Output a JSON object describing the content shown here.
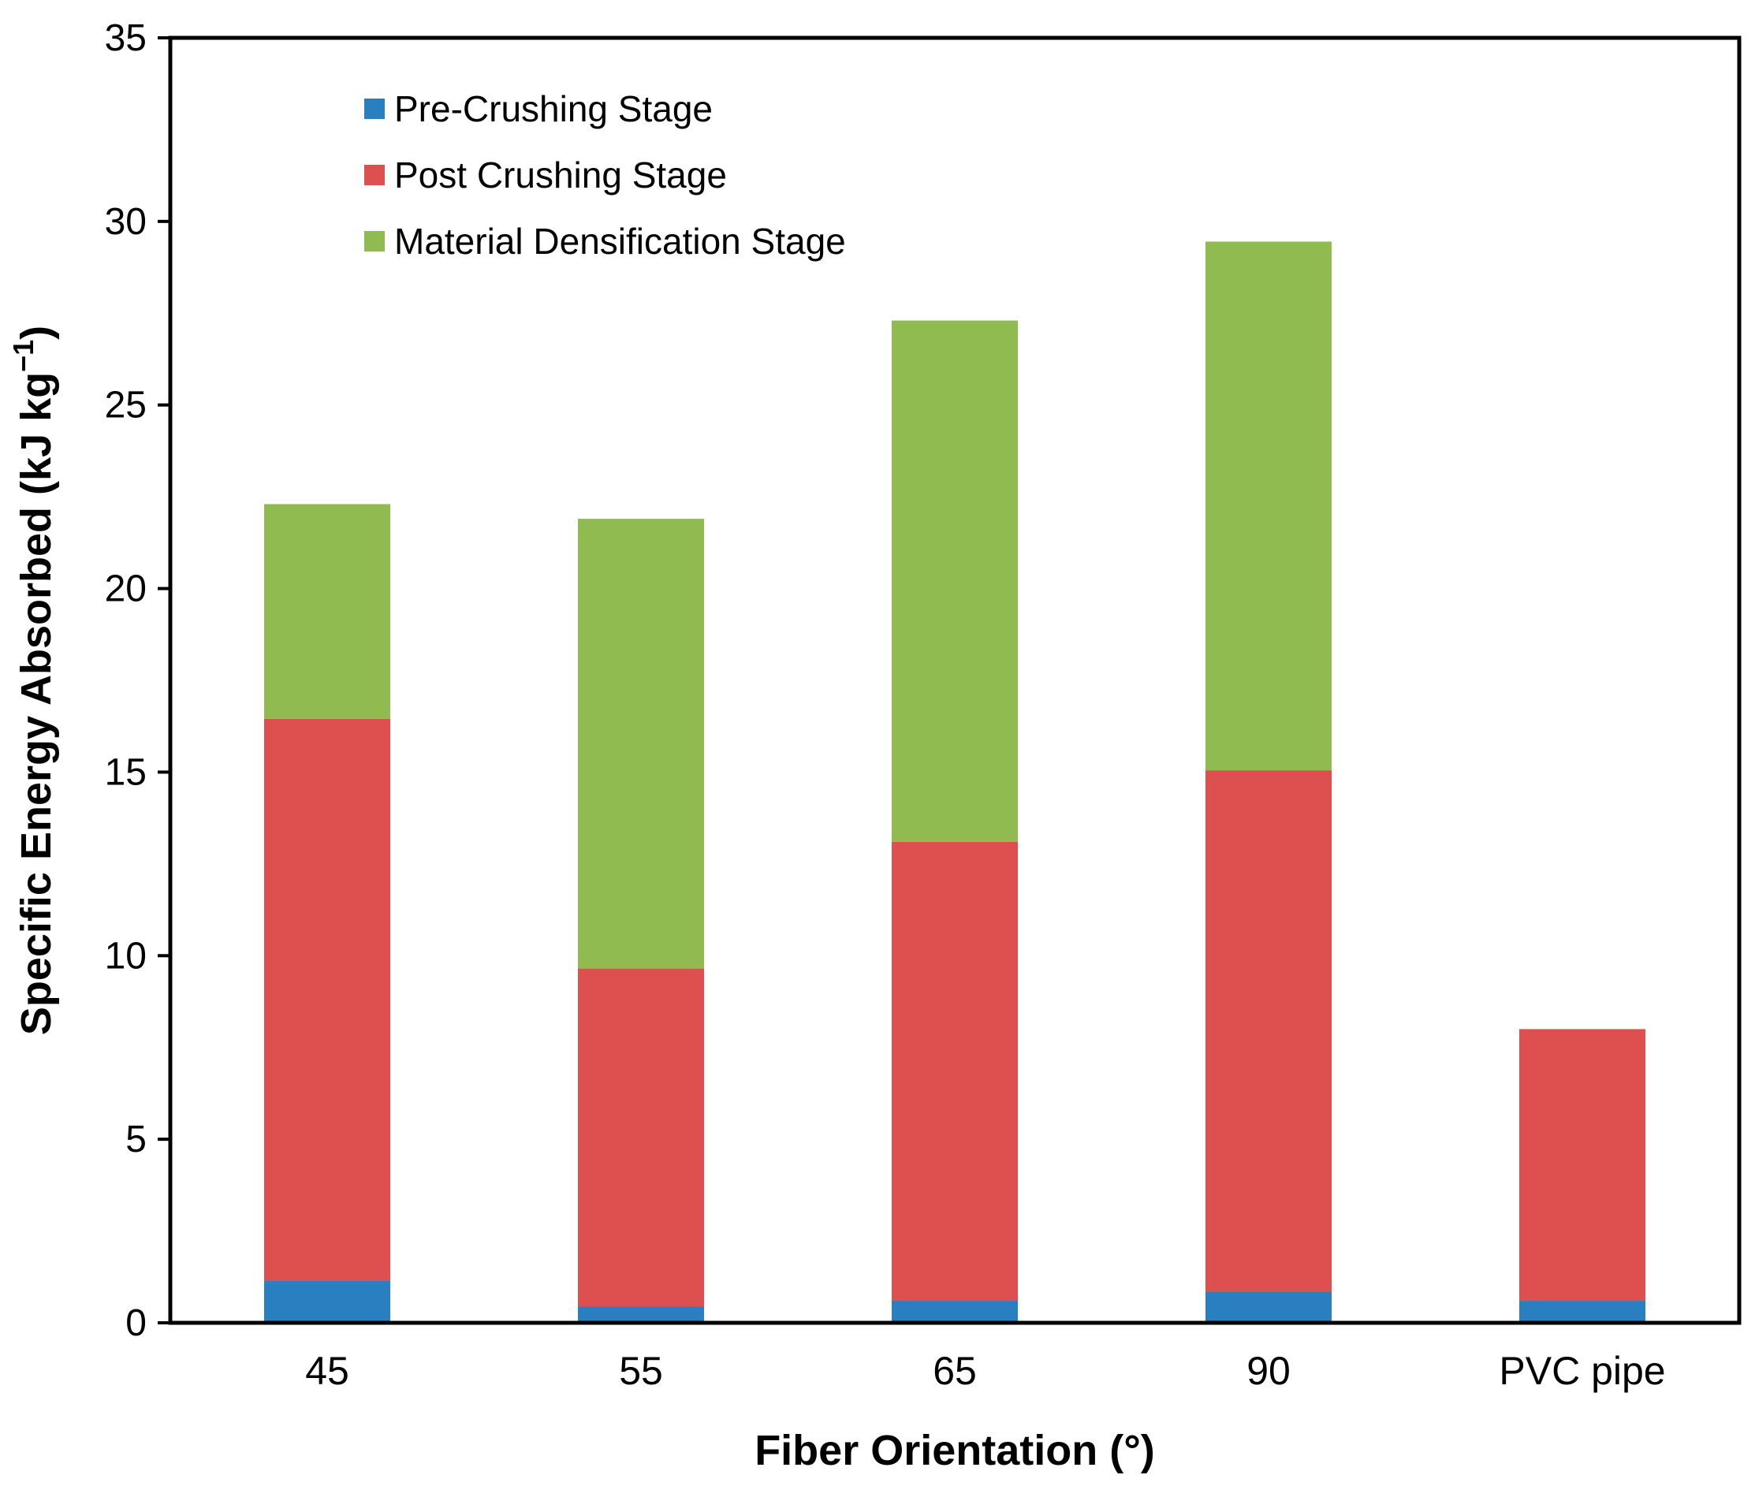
{
  "chart_data": {
    "type": "bar",
    "stacked": true,
    "title": "",
    "xlabel": "Fiber Orientation (°)",
    "ylabel": "Specific Energy Absorbed (kJ kg",
    "ylabel_superscript": "−1",
    "ylabel_suffix": ")",
    "ylim": [
      0,
      35
    ],
    "yticks": [
      0,
      5,
      10,
      15,
      20,
      25,
      30,
      35
    ],
    "categories": [
      "45",
      "55",
      "65",
      "90",
      "PVC pipe"
    ],
    "series": [
      {
        "name": "Pre-Crushing Stage",
        "color": "#2a7fc1",
        "values": [
          1.15,
          0.45,
          0.6,
          0.85,
          0.6
        ]
      },
      {
        "name": "Post Crushing Stage",
        "color": "#dd504f",
        "values": [
          15.3,
          9.2,
          12.5,
          14.2,
          7.4
        ]
      },
      {
        "name": "Material Densification Stage",
        "color": "#8fbb50",
        "values": [
          5.85,
          12.25,
          14.2,
          14.4,
          0
        ]
      }
    ],
    "legend_position": "top-left",
    "grid": false
  }
}
